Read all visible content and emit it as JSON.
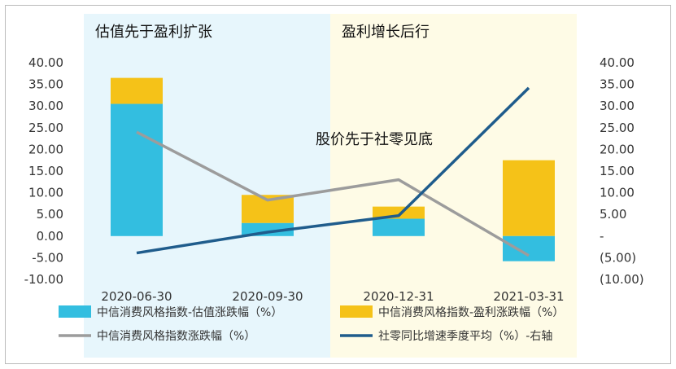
{
  "colors": {
    "valuation_bar": "#33BEE0",
    "profit_bar": "#F5C218",
    "index_line": "#9C9C9C",
    "retail_line": "#1F5C8C",
    "band_left": "#E7F6FC",
    "band_right": "#FEFBE6",
    "border": "#BBBBBB"
  },
  "annotations": {
    "band_left_label": "估值先于盈利扩张",
    "band_right_label": "盈利增长后行",
    "middle_note": "股价先于社零见底"
  },
  "chart_data": {
    "type": "bar",
    "categories": [
      "2020-06-30",
      "2020-09-30",
      "2020-12-31",
      "2021-03-31"
    ],
    "series": [
      {
        "name": "中信消费风格指数-估值涨跌幅（%）",
        "kind": "stacked-bar",
        "axis": "left",
        "values": [
          30.5,
          3.0,
          4.0,
          -5.8
        ]
      },
      {
        "name": "中信消费风格指数-盈利涨跌幅（%）",
        "kind": "stacked-bar",
        "axis": "left",
        "values": [
          6.0,
          6.5,
          2.8,
          17.5
        ]
      },
      {
        "name": "中信消费风格指数涨跌幅（%）",
        "kind": "line",
        "axis": "left",
        "values": [
          24.0,
          8.3,
          13.0,
          -4.5
        ]
      },
      {
        "name": "社零同比增速季度平均（%）-右轴",
        "kind": "line",
        "axis": "right",
        "values": [
          -3.9,
          0.9,
          4.7,
          34.2
        ]
      }
    ],
    "left_axis": {
      "ylim": [
        -10,
        40
      ],
      "ticks": [
        40,
        35,
        30,
        25,
        20,
        15,
        10,
        5,
        0,
        -5,
        -10
      ],
      "tick_labels": [
        "40.00",
        "35.00",
        "30.00",
        "25.00",
        "20.00",
        "15.00",
        "10.00",
        "5.00",
        "0.00",
        "-5.00",
        "-10.00"
      ]
    },
    "right_axis": {
      "ylim": [
        -10,
        40
      ],
      "ticks": [
        40,
        35,
        30,
        25,
        20,
        15,
        10,
        5,
        0,
        -5,
        -10
      ],
      "tick_labels": [
        "40.00",
        "35.00",
        "30.00",
        "25.00",
        "20.00",
        "15.00",
        "10.00",
        "5.00",
        "-",
        "(5.00)",
        "(10.00)"
      ]
    },
    "grid": false,
    "legend_position": "bottom"
  }
}
